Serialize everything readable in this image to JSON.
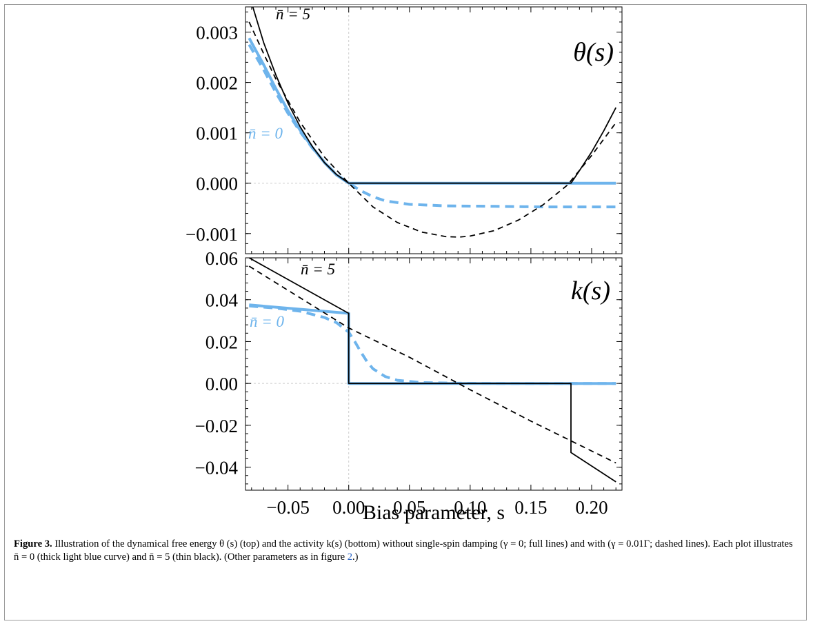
{
  "colors": {
    "light_blue": "#6eb4ec",
    "black": "#000000",
    "zero_line": "#cccccc",
    "frame": "#9a9a9a",
    "link": "#2a63c4"
  },
  "xaxis": {
    "label": "Bias parameter, s",
    "ticks": [
      "−0.05",
      "0.00",
      "0.05",
      "0.10",
      "0.15",
      "0.20"
    ],
    "tick_values": [
      -0.05,
      0.0,
      0.05,
      0.1,
      0.15,
      0.2
    ],
    "range": [
      -0.085,
      0.225
    ]
  },
  "chart_data": [
    {
      "type": "line",
      "title": "θ(s)",
      "ylim": [
        -0.0014,
        0.0035
      ],
      "yticks": [
        "0.003",
        "0.002",
        "0.001",
        "0.000",
        "−0.001"
      ],
      "ytick_values": [
        0.003,
        0.002,
        0.001,
        0.0,
        -0.001
      ],
      "annotations": [
        {
          "text": "n̄ = 5",
          "x": -0.073,
          "y": 0.0032
        },
        {
          "text": "n̄ = 0",
          "x": -0.082,
          "y": 0.001
        }
      ],
      "series": [
        {
          "nbar": 0,
          "style": "full",
          "x": [
            -0.082,
            -0.07,
            -0.06,
            -0.05,
            -0.04,
            -0.03,
            -0.02,
            -0.01,
            0.0,
            0.05,
            0.1,
            0.15,
            0.22
          ],
          "y": [
            0.00288,
            0.00235,
            0.00188,
            0.00144,
            0.00105,
            0.00071,
            0.00041,
            0.00016,
            0.0,
            0.0,
            0.0,
            0.0,
            0.0
          ]
        },
        {
          "nbar": 0,
          "style": "dashed",
          "x": [
            -0.082,
            -0.07,
            -0.06,
            -0.05,
            -0.04,
            -0.03,
            -0.02,
            -0.01,
            0.0,
            0.01,
            0.02,
            0.03,
            0.05,
            0.08,
            0.12,
            0.16,
            0.22
          ],
          "y": [
            0.00275,
            0.00225,
            0.0018,
            0.00139,
            0.00102,
            0.0007,
            0.00042,
            0.00017,
            0.0,
            -0.00015,
            -0.00027,
            -0.00035,
            -0.00042,
            -0.00045,
            -0.00046,
            -0.00047,
            -0.00047
          ]
        },
        {
          "nbar": 5,
          "style": "full",
          "x": [
            -0.079,
            -0.07,
            -0.06,
            -0.05,
            -0.04,
            -0.03,
            -0.02,
            -0.01,
            0.0,
            0.183,
            0.19,
            0.2,
            0.21,
            0.22
          ],
          "y": [
            0.0035,
            0.00279,
            0.00215,
            0.00159,
            0.00112,
            0.00073,
            0.00041,
            0.00017,
            0.0,
            0.0,
            0.00025,
            0.00062,
            0.00104,
            0.0015
          ]
        },
        {
          "nbar": 5,
          "style": "dashed",
          "x": [
            -0.082,
            -0.07,
            -0.06,
            -0.04,
            -0.02,
            0.0,
            0.02,
            0.04,
            0.06,
            0.08,
            0.091,
            0.1,
            0.12,
            0.14,
            0.16,
            0.18,
            0.2,
            0.22
          ],
          "y": [
            0.0032,
            0.00257,
            0.00207,
            0.00121,
            0.00052,
            0.0,
            -0.00047,
            -0.00078,
            -0.00097,
            -0.00106,
            -0.00107,
            -0.00105,
            -0.00094,
            -0.00073,
            -0.00043,
            -4e-05,
            0.00055,
            0.0012
          ]
        }
      ]
    },
    {
      "type": "line",
      "title": "k(s)",
      "ylim": [
        -0.051,
        0.06
      ],
      "yticks": [
        "0.06",
        "0.04",
        "0.02",
        "0.00",
        "−0.02",
        "−0.04"
      ],
      "ytick_values": [
        0.06,
        0.04,
        0.02,
        0.0,
        -0.02,
        -0.04
      ],
      "annotations": [
        {
          "text": "n̄ = 5",
          "x": -0.05,
          "y": 0.053
        },
        {
          "text": "n̄ = 0",
          "x": -0.082,
          "y": 0.027
        }
      ],
      "series": [
        {
          "nbar": 0,
          "style": "full",
          "x": [
            -0.082,
            0.0,
            0.0,
            0.22
          ],
          "y": [
            0.0375,
            0.0335,
            0.0,
            0.0
          ]
        },
        {
          "nbar": 0,
          "style": "dashed",
          "x": [
            -0.082,
            -0.06,
            -0.04,
            -0.02,
            -0.01,
            0.0,
            0.005,
            0.01,
            0.015,
            0.02,
            0.03,
            0.04,
            0.06,
            0.09,
            0.12,
            0.22
          ],
          "y": [
            0.037,
            0.036,
            0.0345,
            0.0315,
            0.029,
            0.0245,
            0.02,
            0.015,
            0.0105,
            0.007,
            0.0033,
            0.0015,
            0.0004,
            0.0001,
            0.0,
            0.0
          ]
        },
        {
          "nbar": 5,
          "style": "full",
          "x": [
            -0.082,
            0.0,
            0.0,
            0.183,
            0.183,
            0.22
          ],
          "y": [
            0.06,
            0.0335,
            0.0,
            0.0,
            -0.033,
            -0.047
          ]
        },
        {
          "nbar": 5,
          "style": "dashed",
          "x": [
            -0.082,
            0.0,
            0.05,
            0.1,
            0.15,
            0.22
          ],
          "y": [
            0.056,
            0.0265,
            0.0125,
            -0.003,
            -0.018,
            -0.038
          ]
        }
      ]
    }
  ],
  "caption": {
    "label": "Figure 3.",
    "before_link": " Illustration of the dynamical free energy θ (s) (top) and the activity k(s) (bottom) without single-spin damping (γ = 0; full lines) and with (γ = 0.01Γ; dashed lines). Each plot illustrates n̄ = 0 (thick light blue curve) and n̄ = 5 (thin black). (Other parameters as in figure ",
    "link": "2",
    "after_link": ".)"
  }
}
